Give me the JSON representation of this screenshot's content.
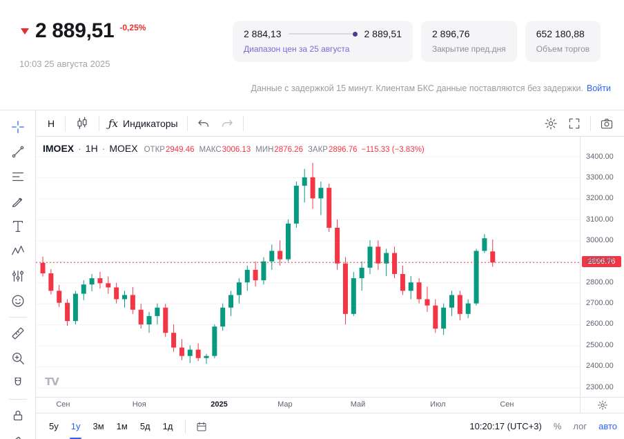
{
  "header": {
    "price": "2 889,51",
    "change": "-0,25%",
    "timestamp": "10:03 25 августа 2025",
    "range_card": {
      "low": "2 884,13",
      "high": "2 889,51",
      "caption": "Диапазон цен за 25 августа"
    },
    "prev_close_card": {
      "value": "2 896,76",
      "caption": "Закрытие пред.дня"
    },
    "volume_card": {
      "value": "652 180,88",
      "caption": "Объем торгов"
    },
    "disclaimer": "Данные с задержкой 15 минут. Клиентам БКС данные поставляются без задержки.",
    "login_link": "Войти"
  },
  "toolbar": {
    "interval": "Н",
    "fx": "ƒx",
    "indicators_label": "Индикаторы"
  },
  "icons": {
    "left_toolbar": [
      "crosshair",
      "trend-line",
      "horizontal-lines",
      "brush",
      "text",
      "xabcd-pattern",
      "forecast",
      "emoji",
      "ruler",
      "zoom-in",
      "magnet",
      "lock",
      "eraser"
    ],
    "top_toolbar": [
      "candlestick",
      "fx",
      "undo",
      "redo",
      "gear",
      "fullscreen",
      "camera"
    ],
    "bottom_toolbar": [
      "calendar"
    ],
    "axis": [
      "gear"
    ]
  },
  "legend": {
    "symbol": "IMOEX",
    "sep": "·",
    "interval": "1Н",
    "exchange": "MOEX",
    "stats": [
      {
        "label": "ОТКР",
        "value": "2949.46"
      },
      {
        "label": "МАКС",
        "value": "3006.13"
      },
      {
        "label": "МИН",
        "value": "2876.26"
      },
      {
        "label": "ЗАКР",
        "value": "2896.76"
      }
    ],
    "change": "−115.33 (−3.83%)"
  },
  "chart_data": {
    "type": "candlestick",
    "title": "IMOEX 1Н MOEX",
    "y_axis": {
      "min": 2300,
      "max": 3400,
      "step": 100
    },
    "x_axis_labels": [
      {
        "text": "Сен",
        "pos": 0.05
      },
      {
        "text": "Ноя",
        "pos": 0.19
      },
      {
        "text": "2025",
        "pos": 0.337,
        "year": true
      },
      {
        "text": "Мар",
        "pos": 0.458
      },
      {
        "text": "Май",
        "pos": 0.592
      },
      {
        "text": "Июл",
        "pos": 0.739
      },
      {
        "text": "Сен",
        "pos": 0.866
      }
    ],
    "last_close": 2896.76,
    "last_close_label": "2896.76",
    "colors": {
      "up": "#089981",
      "down": "#f23645",
      "line": "#f23645"
    },
    "grid": true,
    "legend_position": "top-left",
    "ohlc": [
      [
        2895,
        2925,
        2830,
        2845
      ],
      [
        2845,
        2865,
        2745,
        2762
      ],
      [
        2762,
        2790,
        2685,
        2705
      ],
      [
        2705,
        2722,
        2595,
        2618
      ],
      [
        2618,
        2762,
        2602,
        2748
      ],
      [
        2748,
        2812,
        2718,
        2792
      ],
      [
        2792,
        2842,
        2760,
        2822
      ],
      [
        2822,
        2852,
        2772,
        2798
      ],
      [
        2798,
        2830,
        2748,
        2778
      ],
      [
        2778,
        2800,
        2702,
        2722
      ],
      [
        2722,
        2762,
        2682,
        2742
      ],
      [
        2742,
        2780,
        2652,
        2672
      ],
      [
        2672,
        2700,
        2582,
        2602
      ],
      [
        2602,
        2662,
        2562,
        2642
      ],
      [
        2642,
        2702,
        2602,
        2682
      ],
      [
        2682,
        2700,
        2542,
        2562
      ],
      [
        2562,
        2602,
        2472,
        2492
      ],
      [
        2492,
        2532,
        2432,
        2452
      ],
      [
        2452,
        2502,
        2418,
        2482
      ],
      [
        2482,
        2512,
        2428,
        2442
      ],
      [
        2442,
        2462,
        2415,
        2452
      ],
      [
        2452,
        2602,
        2442,
        2592
      ],
      [
        2592,
        2702,
        2572,
        2682
      ],
      [
        2682,
        2762,
        2642,
        2742
      ],
      [
        2742,
        2822,
        2702,
        2802
      ],
      [
        2802,
        2882,
        2762,
        2862
      ],
      [
        2862,
        2902,
        2782,
        2812
      ],
      [
        2812,
        2922,
        2792,
        2902
      ],
      [
        2902,
        2982,
        2862,
        2952
      ],
      [
        2952,
        3002,
        2882,
        2912
      ],
      [
        2912,
        3102,
        2902,
        3082
      ],
      [
        3082,
        3282,
        3062,
        3262
      ],
      [
        3262,
        3342,
        3182,
        3302
      ],
      [
        3302,
        3371,
        3152,
        3202
      ],
      [
        3202,
        3282,
        3122,
        3252
      ],
      [
        3252,
        3272,
        3042,
        3062
      ],
      [
        3062,
        3102,
        2862,
        2892
      ],
      [
        2892,
        2922,
        2602,
        2652
      ],
      [
        2652,
        2852,
        2642,
        2822
      ],
      [
        2822,
        2902,
        2762,
        2872
      ],
      [
        2872,
        3002,
        2842,
        2972
      ],
      [
        2972,
        3002,
        2862,
        2892
      ],
      [
        2892,
        2962,
        2832,
        2942
      ],
      [
        2942,
        2972,
        2822,
        2842
      ],
      [
        2842,
        2882,
        2742,
        2762
      ],
      [
        2762,
        2832,
        2722,
        2802
      ],
      [
        2802,
        2822,
        2702,
        2722
      ],
      [
        2722,
        2782,
        2662,
        2692
      ],
      [
        2692,
        2722,
        2562,
        2582
      ],
      [
        2582,
        2702,
        2552,
        2682
      ],
      [
        2682,
        2762,
        2642,
        2742
      ],
      [
        2742,
        2762,
        2622,
        2652
      ],
      [
        2652,
        2722,
        2632,
        2702
      ],
      [
        2702,
        2962,
        2692,
        2952
      ],
      [
        2952,
        3032,
        2942,
        3012
      ],
      [
        2949.46,
        3006.13,
        2876.26,
        2896.76
      ]
    ]
  },
  "bottom": {
    "ranges": [
      {
        "label": "5у",
        "active": false
      },
      {
        "label": "1у",
        "active": true
      },
      {
        "label": "3м",
        "active": false
      },
      {
        "label": "1м",
        "active": false
      },
      {
        "label": "5д",
        "active": false
      },
      {
        "label": "1д",
        "active": false
      }
    ],
    "clock": "10:20:17 (UTC+3)",
    "percent": "%",
    "log": "лог",
    "auto": "авто"
  }
}
